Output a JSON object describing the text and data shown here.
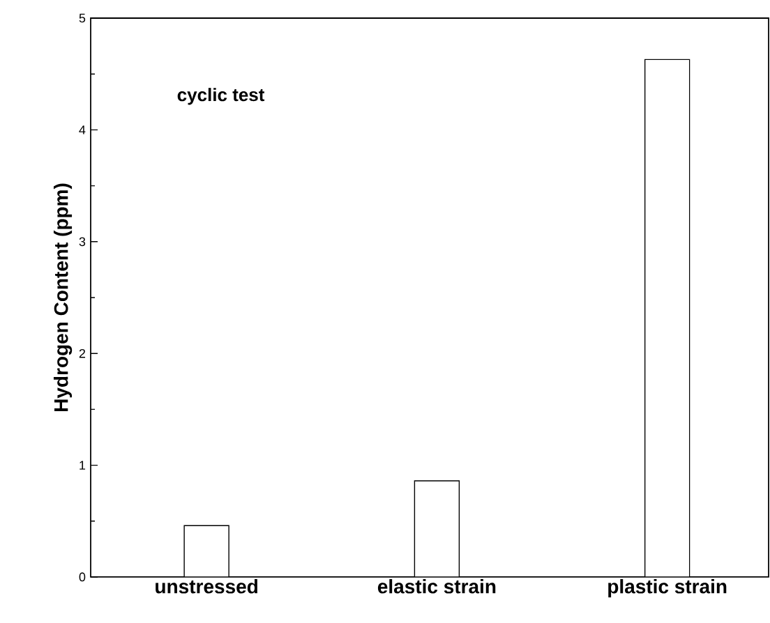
{
  "chart_data": {
    "type": "bar",
    "categories": [
      "unstressed",
      "elastic strain",
      "plastic strain"
    ],
    "values": [
      0.46,
      0.86,
      4.63
    ],
    "color": "#000000",
    "ylabel": "Hydrogen Content (ppm)",
    "annotations": [
      "cyclic test"
    ],
    "ylim": [
      0,
      5
    ],
    "yticks": [
      0,
      1,
      2,
      3,
      4,
      5
    ],
    "grid": false
  }
}
